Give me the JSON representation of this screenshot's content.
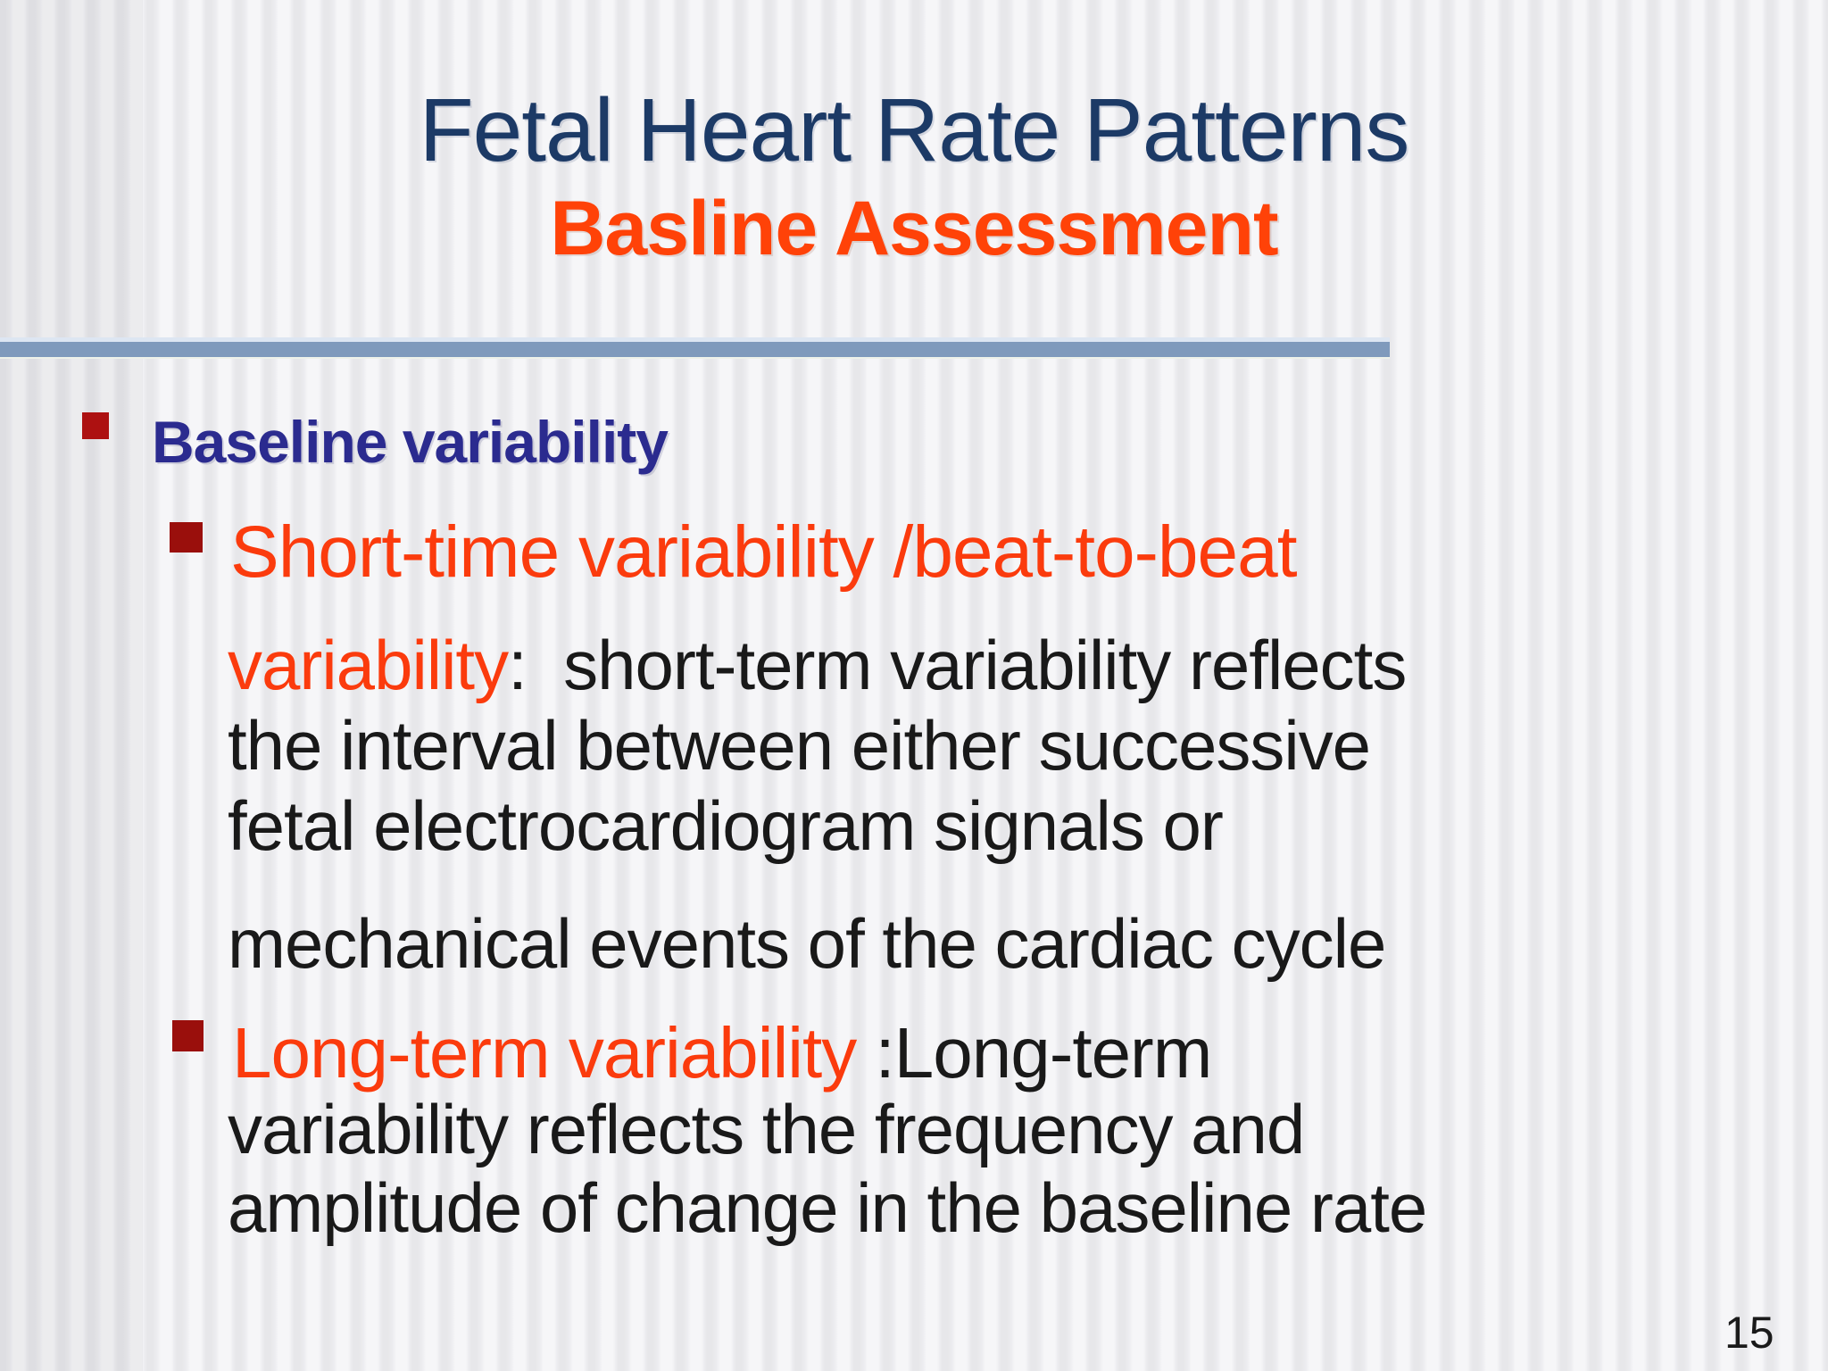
{
  "slide": {
    "title": "Fetal Heart Rate Patterns",
    "subtitle": "Basline Assessment",
    "heading": "Baseline variability",
    "item1": {
      "lead": "Short-time variability /beat-to-beat",
      "line1_orange": "variability",
      "line1_rest": ":  short-term variability reflects",
      "line2": "the interval between either successive",
      "line3": "fetal electrocardiogram signals or",
      "line4": "mechanical events of the cardiac cycle"
    },
    "item2": {
      "line1_orange": "Long-term variability ",
      "line1_rest": ":Long-term",
      "line2": "variability reflects the frequency and",
      "line3": "amplitude of change in the baseline rate"
    },
    "page_number": "15",
    "colors": {
      "title_navy": "#1c3a66",
      "accent_orange": "#fb3b0d",
      "subtitle_orange": "#ff4208",
      "heading_blue": "#2b2b8f",
      "bullet_red_level1": "#ad1111",
      "bullet_red_level2": "#9a0f0c",
      "separator_blue": "#7f9abc",
      "body_text": "#191919"
    }
  }
}
